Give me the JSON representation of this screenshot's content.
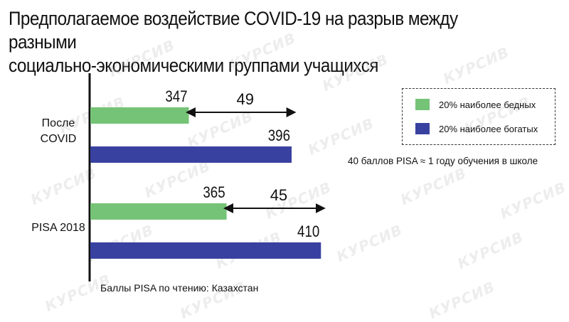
{
  "title_line1": "Предполагаемое воздействие COVID-19 на разрыв между разными",
  "title_line2": "социально-экономическими группами учащихся",
  "legend": {
    "poor_label": "20% наиболее бедных",
    "rich_label": "20% наиболее богатых"
  },
  "note": "40 баллов PISA ≈ 1 году обучения в школе",
  "source": "Баллы PISA по чтению: Казахстан",
  "watermark": "КУРСИВ",
  "colors": {
    "poor": "#75c377",
    "rich": "#3941a0",
    "axis": "#111111"
  },
  "chart_data": {
    "type": "bar",
    "orientation": "horizontal",
    "categories": [
      "После\nCOVID",
      "PISA 2018"
    ],
    "series": [
      {
        "name": "20% наиболее бедных",
        "values": [
          347,
          365
        ]
      },
      {
        "name": "20% наиболее богатых",
        "values": [
          396,
          410
        ]
      }
    ],
    "gaps": [
      "49",
      "45"
    ],
    "xlim": [
      300,
      415
    ],
    "legend_position": "right",
    "grid": false
  }
}
